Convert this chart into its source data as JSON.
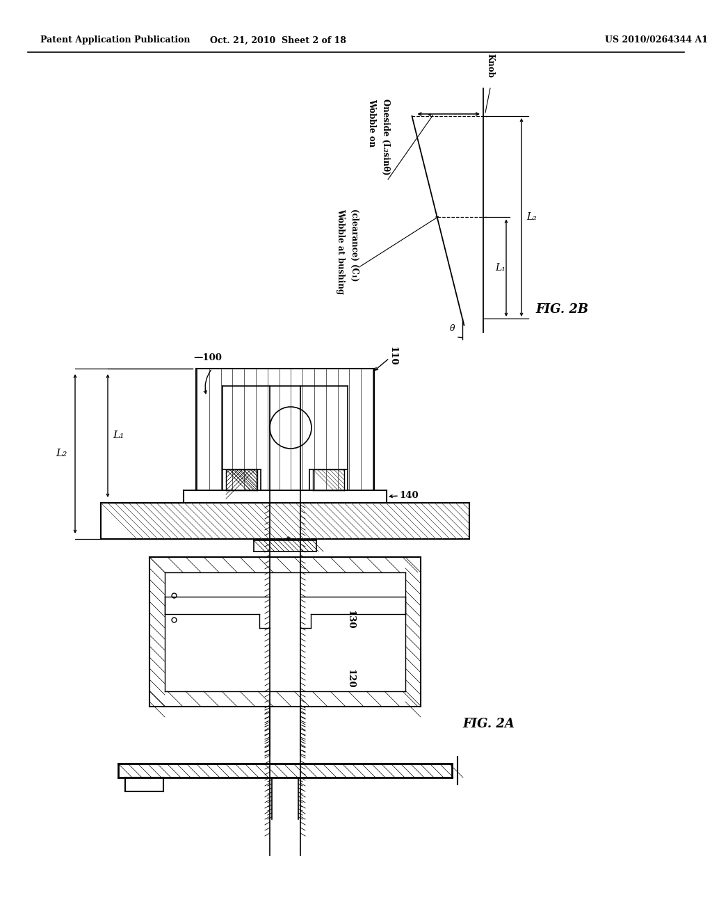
{
  "background_color": "#ffffff",
  "header_left": "Patent Application Publication",
  "header_center": "Oct. 21, 2010  Sheet 2 of 18",
  "header_right": "US 2010/0264344 A1",
  "line_color": "#000000",
  "text_color": "#000000",
  "font_size_header": 9,
  "fig2b_title": "FIG. 2B",
  "fig2a_title": "FIG. 2A"
}
